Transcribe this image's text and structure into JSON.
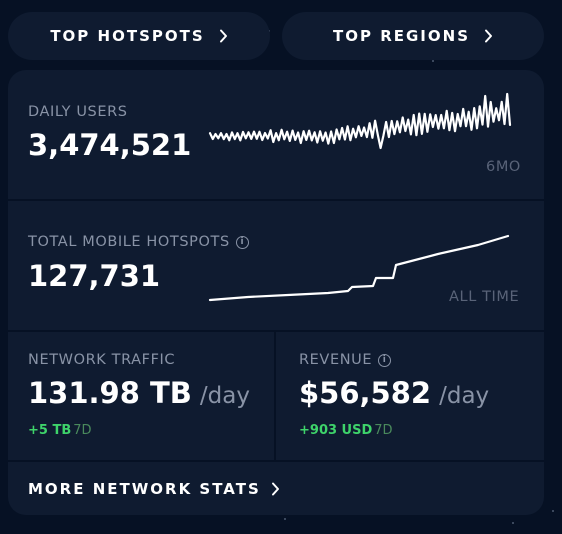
{
  "nav": {
    "top_hotspots": "TOP HOTSPOTS",
    "top_regions": "TOP REGIONS"
  },
  "daily_users": {
    "label": "DAILY USERS",
    "value": "3,474,521",
    "period": "6MO"
  },
  "total_hotspots": {
    "label": "TOTAL MOBILE HOTSPOTS",
    "value": "127,731",
    "period": "ALL TIME"
  },
  "network_traffic": {
    "label": "NETWORK TRAFFIC",
    "value": "131.98 TB",
    "unit": "/day",
    "delta": "+5 TB",
    "delta_window": "7D"
  },
  "revenue": {
    "label": "REVENUE",
    "value": "$56,582",
    "unit": "/day",
    "delta": "+903 USD",
    "delta_window": "7D"
  },
  "more_link": "MORE NETWORK STATS",
  "colors": {
    "background": "#061124",
    "card": "#0f1b30",
    "label": "#8993a6",
    "positive": "#3ed36a"
  },
  "icons": {
    "nav_arrow": "chevron-right-icon",
    "info": "info-icon"
  }
}
